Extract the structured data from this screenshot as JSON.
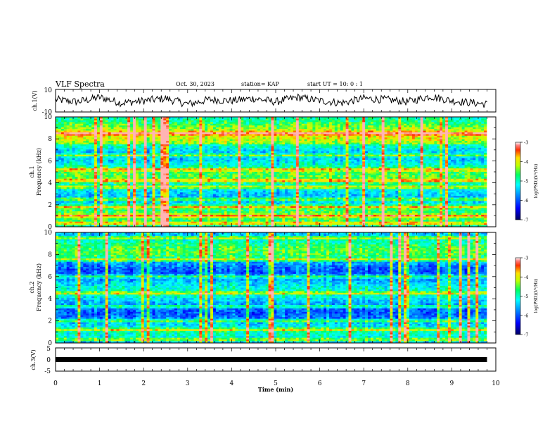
{
  "header": {
    "title": "VLF Spectra",
    "date": "Oct. 30, 2023",
    "station": "station= KAP",
    "start": "start  UT  =   10: 0   : 1"
  },
  "colors": {
    "waveform": "#000000",
    "colormap": [
      "#000066",
      "#0000ff",
      "#0088ff",
      "#00ffff",
      "#00ff88",
      "#88ff00",
      "#ffff00",
      "#ff8800",
      "#ff0000",
      "#ffffff"
    ]
  },
  "chart_data": [
    {
      "type": "line",
      "panel": "ch1-waveform",
      "ylabel": "ch.1(V)",
      "ylim": [
        -10,
        10
      ],
      "yticks": [
        "10",
        "-10"
      ],
      "x": [
        0,
        0.5,
        1,
        1.5,
        2,
        2.5,
        3,
        3.5,
        4,
        4.5,
        5,
        5.5,
        6,
        6.5,
        7,
        7.5,
        8,
        8.5,
        9,
        9.5,
        9.8
      ],
      "y": [
        1,
        -1,
        3,
        -2,
        0,
        2,
        -3,
        1,
        0,
        2,
        -1,
        3,
        0,
        -2,
        2,
        1,
        -1,
        4,
        0,
        -2,
        -3
      ]
    },
    {
      "type": "heatmap",
      "panel": "ch1-spectrogram",
      "ylabel": "ch.1\nFrequency (kHz)",
      "ylabel_line1": "ch.1",
      "ylabel_line2": "Frequency (kHz)",
      "ylim": [
        0,
        10
      ],
      "yticks": [
        "0",
        "2",
        "4",
        "6",
        "8",
        "10"
      ],
      "xlim": [
        0,
        10
      ],
      "colorbar": {
        "label": "log(PSD)(V²/Hz)",
        "range": [
          -7,
          -3
        ],
        "ticks": [
          "-3",
          "-4",
          "-5",
          "-6",
          "-7"
        ]
      },
      "dominant_bands_khz": [
        0.3,
        1.0,
        1.8,
        2.5,
        3.6,
        4.2,
        5.2,
        6.5,
        8.5
      ]
    },
    {
      "type": "heatmap",
      "panel": "ch2-spectrogram",
      "ylabel": "ch.2\nFrequency (kHz)",
      "ylabel_line1": "ch.2",
      "ylabel_line2": "Frequency (kHz)",
      "ylim": [
        0,
        10
      ],
      "yticks": [
        "0",
        "2",
        "4",
        "6",
        "8",
        "10"
      ],
      "xlim": [
        0,
        10
      ],
      "colorbar": {
        "label": "log(PSD)(V²/Hz)",
        "range": [
          -7,
          -3
        ],
        "ticks": [
          "-3",
          "-4",
          "-5",
          "-6",
          "-7"
        ]
      },
      "dominant_bands_khz": [
        0.3,
        1.2,
        2.0,
        3.3,
        4.5,
        6.0,
        7.5,
        9.5
      ]
    },
    {
      "type": "line",
      "panel": "ch3-waveform",
      "ylabel": "ch.3(V)",
      "ylim": [
        -5,
        5
      ],
      "yticks": [
        "5",
        "0",
        "-5"
      ],
      "x": [
        0,
        9.8
      ],
      "y": [
        0,
        0
      ]
    }
  ],
  "xaxis": {
    "label": "Time  (min)",
    "ticks": [
      "0",
      "1",
      "2",
      "3",
      "4",
      "5",
      "6",
      "7",
      "8",
      "9",
      "10"
    ],
    "range": [
      0,
      10
    ]
  }
}
